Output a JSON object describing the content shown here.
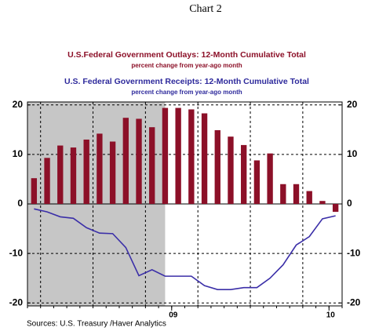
{
  "chart_data": {
    "type": "bar",
    "title": "Chart 2",
    "subtitles": [
      {
        "text": "U.S.Federal Government Outlays: 12-Month Cumulative Total",
        "note": "percent change from year-ago month",
        "color": "#8c1028"
      },
      {
        "text": "U.S. Federal Government Receipts: 12-Month Cumulative Total",
        "note": "percent change from year-ago month",
        "color": "#2e2a9c"
      }
    ],
    "source": "Sources:  U.S. Treasury /Haver Analytics",
    "categories": [
      null,
      null,
      null,
      null,
      null,
      null,
      null,
      null,
      null,
      null,
      null,
      "09",
      null,
      null,
      null,
      null,
      null,
      null,
      null,
      null,
      null,
      null,
      null,
      "10"
    ],
    "series": [
      {
        "name": "U.S.Federal Government Outlays",
        "type": "bar",
        "color": "#8c1028",
        "values": [
          5.2,
          9.3,
          11.8,
          11.4,
          13.0,
          14.2,
          12.6,
          17.4,
          17.2,
          15.5,
          19.4,
          19.4,
          19.1,
          18.3,
          14.9,
          13.6,
          11.9,
          8.8,
          10.2,
          4.0,
          4.0,
          2.6,
          0.6,
          -1.6
        ]
      },
      {
        "name": "U.S. Federal Government Receipts",
        "type": "line",
        "color": "#3b2fa8",
        "values": [
          -1.0,
          -1.6,
          -2.6,
          -2.9,
          -4.8,
          -5.9,
          -6.0,
          -8.8,
          -14.5,
          -13.3,
          -14.6,
          -14.6,
          -14.6,
          -16.5,
          -17.3,
          -17.3,
          -16.9,
          -16.9,
          -15.0,
          -12.3,
          -8.3,
          -6.6,
          -3.0,
          -2.4
        ]
      }
    ],
    "shade": [
      0,
      10
    ],
    "ylim": [
      -20.6,
      20.6
    ],
    "yticks": [
      -20,
      -10,
      0,
      10,
      20
    ],
    "grid": true
  }
}
